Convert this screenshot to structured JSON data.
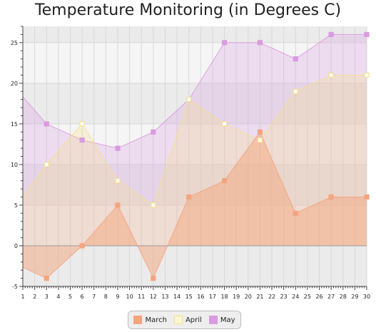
{
  "chart_data": {
    "type": "area",
    "title": "Temperature Monitoring (in Degrees C)",
    "xlabel": "",
    "ylabel": "",
    "xlim": [
      1,
      30
    ],
    "ylim": [
      -5,
      27
    ],
    "x_major_ticks": [
      1,
      2,
      3,
      4,
      5,
      6,
      7,
      8,
      9,
      10,
      11,
      12,
      13,
      14,
      15,
      16,
      17,
      18,
      19,
      20,
      21,
      22,
      23,
      24,
      25,
      26,
      27,
      28,
      29,
      30
    ],
    "y_major_ticks": [
      -5,
      0,
      5,
      10,
      15,
      20,
      25
    ],
    "grid": true,
    "legend_position": "bottom",
    "series": [
      {
        "name": "March",
        "color": "#f4a57e",
        "points": [
          [
            0,
            -2
          ],
          [
            3,
            -4
          ],
          [
            6,
            0
          ],
          [
            9,
            5
          ],
          [
            12,
            -4
          ],
          [
            15,
            6
          ],
          [
            18,
            8
          ],
          [
            21,
            14
          ],
          [
            24,
            4
          ],
          [
            27,
            6
          ],
          [
            30,
            6
          ]
        ]
      },
      {
        "name": "April",
        "color": "#f5e08c",
        "points": [
          [
            0,
            4
          ],
          [
            3,
            10
          ],
          [
            6,
            15
          ],
          [
            9,
            8
          ],
          [
            12,
            5
          ],
          [
            15,
            18
          ],
          [
            18,
            15
          ],
          [
            21,
            13
          ],
          [
            24,
            19
          ],
          [
            27,
            21
          ],
          [
            30,
            21
          ]
        ]
      },
      {
        "name": "May",
        "color": "#d99be0",
        "points": [
          [
            0,
            20
          ],
          [
            3,
            15
          ],
          [
            6,
            13
          ],
          [
            9,
            12
          ],
          [
            12,
            14
          ],
          [
            15,
            18
          ],
          [
            18,
            25
          ],
          [
            21,
            25
          ],
          [
            24,
            23
          ],
          [
            27,
            26
          ],
          [
            30,
            26
          ]
        ]
      }
    ]
  }
}
